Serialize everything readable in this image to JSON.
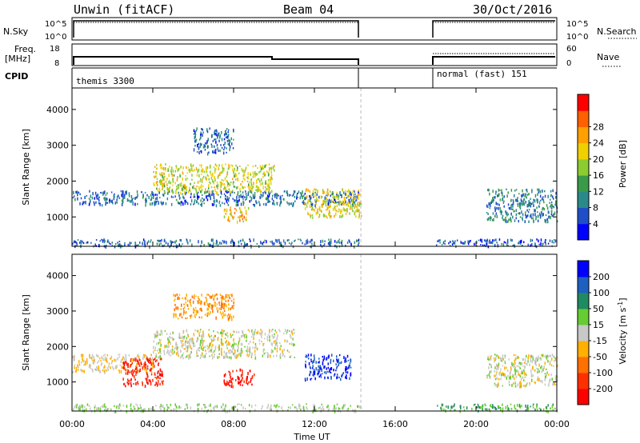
{
  "header": {
    "station": "Unwin (fitACF)",
    "beam": "Beam 04",
    "date": "30/Oct/2016"
  },
  "meta_panels": {
    "nsky_label": "N.Sky",
    "nsky_ticks": [
      "10^5",
      "10^0"
    ],
    "nsearch_label": "N.Search",
    "nsearch_ticks": [
      "10^5",
      "10^0"
    ],
    "freq_label_1": "Freq.",
    "freq_label_2": "[MHz]",
    "freq_ticks": [
      "18",
      "8"
    ],
    "nave_label": "Nave",
    "nave_ticks": [
      "60",
      "0"
    ],
    "cpid_label": "CPID",
    "cpid_segments": [
      {
        "label": "themis 3300",
        "start_h": 0,
        "end_h": 14.3
      },
      {
        "label": "normal (fast) 151",
        "start_h": 18.0,
        "end_h": 24.0
      }
    ]
  },
  "chart_data": [
    {
      "type": "heatmap",
      "title": "",
      "ylabel": "Slant Range [km]",
      "xlabel": "",
      "xlim": [
        0,
        24
      ],
      "ylim": [
        180,
        4600
      ],
      "yticks": [
        "1000",
        "2000",
        "3000",
        "4000"
      ],
      "colorbar": {
        "label": "Power [dB]",
        "ticks": [
          "4",
          "8",
          "12",
          "16",
          "20",
          "24",
          "28"
        ],
        "colors": [
          "#0000ff",
          "#1f4fc8",
          "#2a8a8a",
          "#3a9a4a",
          "#8ccc30",
          "#f0d000",
          "#ffa000",
          "#ff6000",
          "#ff0000"
        ]
      },
      "data_gaps_h": [
        [
          14.3,
          18.0
        ]
      ],
      "echo_regions": [
        {
          "start_h": 0.0,
          "end_h": 14.3,
          "range_km": [
            1350,
            1750
          ],
          "power_db": 8
        },
        {
          "start_h": 4.0,
          "end_h": 10.0,
          "range_km": [
            1700,
            2500
          ],
          "power_db": 20
        },
        {
          "start_h": 7.5,
          "end_h": 8.8,
          "range_km": [
            900,
            1300
          ],
          "power_db": 24
        },
        {
          "start_h": 11.5,
          "end_h": 14.3,
          "range_km": [
            1000,
            1800
          ],
          "power_db": 22
        },
        {
          "start_h": 6.0,
          "end_h": 8.0,
          "range_km": [
            2800,
            3500
          ],
          "power_db": 8
        },
        {
          "start_h": 0.0,
          "end_h": 14.3,
          "range_km": [
            200,
            400
          ],
          "power_db": 8
        },
        {
          "start_h": 18.0,
          "end_h": 24.0,
          "range_km": [
            200,
            400
          ],
          "power_db": 6
        },
        {
          "start_h": 20.5,
          "end_h": 24.0,
          "range_km": [
            900,
            1800
          ],
          "power_db": 10
        }
      ]
    },
    {
      "type": "heatmap",
      "title": "",
      "ylabel": "Slant Range [km]",
      "xlabel": "Time UT",
      "xlim": [
        0,
        24
      ],
      "ylim": [
        180,
        4600
      ],
      "xticks": [
        "00:00",
        "04:00",
        "08:00",
        "12:00",
        "16:00",
        "20:00",
        "00:00"
      ],
      "yticks": [
        "1000",
        "2000",
        "3000",
        "4000"
      ],
      "colorbar": {
        "label_main": "Velocity [m s",
        "label_sup": "-1",
        "label_end": "]",
        "ticks": [
          "200",
          "100",
          "50",
          "15",
          "-15",
          "-50",
          "-100",
          "-200"
        ],
        "colors": [
          "#0000ff",
          "#1e60c0",
          "#208a60",
          "#66cc33",
          "#c8c8c8",
          "#ffb000",
          "#ff7000",
          "#ff3000",
          "#ff0000"
        ]
      },
      "data_gaps_h": [
        [
          14.3,
          18.0
        ]
      ],
      "echo_regions": [
        {
          "start_h": 0.0,
          "end_h": 4.0,
          "range_km": [
            1300,
            1800
          ],
          "velocity": -15
        },
        {
          "start_h": 2.5,
          "end_h": 4.5,
          "range_km": [
            900,
            1700
          ],
          "velocity": -200
        },
        {
          "start_h": 7.5,
          "end_h": 9.0,
          "range_km": [
            900,
            1400
          ],
          "velocity": -200
        },
        {
          "start_h": 4.0,
          "end_h": 11.0,
          "range_km": [
            1700,
            2500
          ],
          "velocity": 0
        },
        {
          "start_h": 11.5,
          "end_h": 13.8,
          "range_km": [
            1100,
            1800
          ],
          "velocity": 200
        },
        {
          "start_h": 5.0,
          "end_h": 8.0,
          "range_km": [
            2800,
            3500
          ],
          "velocity": -50
        },
        {
          "start_h": 0.0,
          "end_h": 14.3,
          "range_km": [
            200,
            400
          ],
          "velocity": 15
        },
        {
          "start_h": 18.0,
          "end_h": 24.0,
          "range_km": [
            200,
            400
          ],
          "velocity": 50
        },
        {
          "start_h": 20.5,
          "end_h": 24.0,
          "range_km": [
            900,
            1800
          ],
          "velocity": 0
        }
      ]
    }
  ]
}
